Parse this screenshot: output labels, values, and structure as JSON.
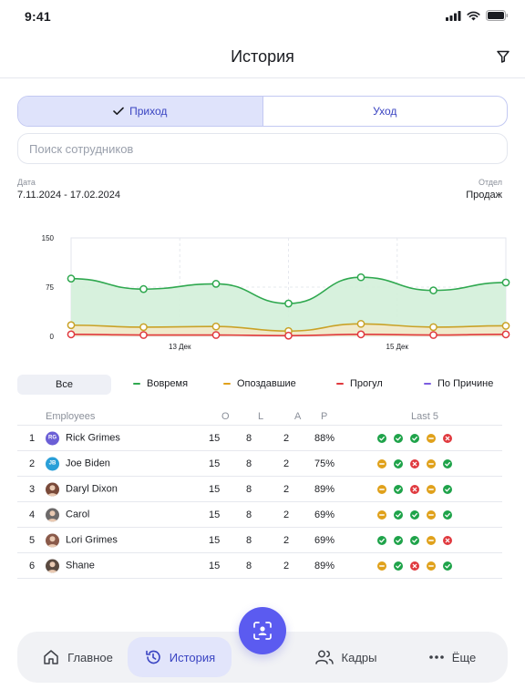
{
  "status": {
    "time": "9:41"
  },
  "nav": {
    "title": "История"
  },
  "segments": {
    "income": "Приход",
    "leave": "Уход"
  },
  "search": {
    "placeholder": "Поиск сотрудников"
  },
  "meta": {
    "date_label": "Дата",
    "date_value": "7.11.2024 - 17.02.2024",
    "dept_label": "Отдел",
    "dept_value": "Продаж"
  },
  "chart_data": {
    "type": "area",
    "y_ticks": [
      "150",
      "75",
      "0"
    ],
    "ylim": [
      0,
      150
    ],
    "x_labels": [
      {
        "label": "13 Дек",
        "index": 1.5
      },
      {
        "label": "15 Дек",
        "index": 4.5
      }
    ],
    "grid": true,
    "series": [
      {
        "values": [
          88,
          72,
          80,
          50,
          90,
          70,
          82
        ],
        "color": "#2fa84f",
        "fill": "#d3efd9"
      },
      {
        "values": [
          17,
          14,
          15,
          8,
          19,
          14,
          16
        ],
        "color": "#c9a227",
        "fill": "#f3e9c9"
      },
      {
        "values": [
          3,
          2,
          2,
          1,
          3,
          2,
          3
        ],
        "color": "#e0393e",
        "fill": "none"
      }
    ]
  },
  "filters": {
    "all": "Все",
    "legend": [
      {
        "label": "Вовремя",
        "color": "#2fa84f"
      },
      {
        "label": "Опоздавшие",
        "color": "#e0a11b"
      },
      {
        "label": "Прогул",
        "color": "#e0393e"
      },
      {
        "label": "По Причине",
        "color": "#7b5ce0"
      }
    ]
  },
  "table": {
    "headers": {
      "employees": "Employees",
      "o": "O",
      "l": "L",
      "a": "A",
      "p": "P",
      "last5": "Last 5"
    },
    "rows": [
      {
        "n": "1",
        "name": "Rick Grimes",
        "initials": "RG",
        "avatar_color": "#6b5fd6",
        "o": "15",
        "l": "8",
        "a": "2",
        "p": "88%",
        "last5": [
          "ok",
          "ok",
          "ok",
          "late",
          "absent"
        ]
      },
      {
        "n": "2",
        "name": "Joe Biden",
        "initials": "JB",
        "avatar_color": "#2a9fd8",
        "o": "15",
        "l": "8",
        "a": "2",
        "p": "75%",
        "last5": [
          "late",
          "ok",
          "absent",
          "late",
          "ok"
        ]
      },
      {
        "n": "3",
        "name": "Daryl Dixon",
        "initials": "",
        "avatar_color": "#7a4a3a",
        "o": "15",
        "l": "8",
        "a": "2",
        "p": "89%",
        "last5": [
          "late",
          "ok",
          "absent",
          "late",
          "ok"
        ]
      },
      {
        "n": "4",
        "name": "Carol",
        "initials": "",
        "avatar_color": "#6d6a6a",
        "o": "15",
        "l": "8",
        "a": "2",
        "p": "69%",
        "last5": [
          "late",
          "ok",
          "ok",
          "late",
          "ok"
        ]
      },
      {
        "n": "5",
        "name": "Lori Grimes",
        "initials": "",
        "avatar_color": "#8a5a4a",
        "o": "15",
        "l": "8",
        "a": "2",
        "p": "69%",
        "last5": [
          "ok",
          "ok",
          "ok",
          "late",
          "absent"
        ]
      },
      {
        "n": "6",
        "name": "Shane",
        "initials": "",
        "avatar_color": "#5a4a40",
        "o": "15",
        "l": "8",
        "a": "2",
        "p": "89%",
        "last5": [
          "late",
          "ok",
          "absent",
          "late",
          "ok"
        ]
      }
    ]
  },
  "tabbar": {
    "home": "Главное",
    "history": "История",
    "staff": "Кадры",
    "more": "Ёще"
  },
  "colors": {
    "accent": "#5b5bf0",
    "ok": "#1fa34a",
    "late": "#e0a11b",
    "absent": "#e0393e"
  }
}
